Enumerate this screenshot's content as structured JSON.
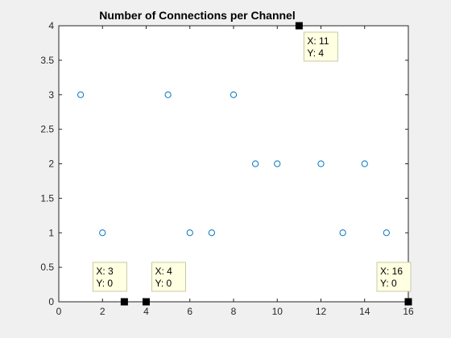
{
  "chart_data": {
    "type": "scatter",
    "title": "Number of Connections per Channel",
    "xlabel": "",
    "ylabel": "",
    "xlim": [
      0,
      16
    ],
    "ylim": [
      0,
      4
    ],
    "xticks": [
      0,
      2,
      4,
      6,
      8,
      10,
      12,
      14,
      16
    ],
    "yticks": [
      0,
      0.5,
      1,
      1.5,
      2,
      2.5,
      3,
      3.5,
      4
    ],
    "grid": false,
    "legend": "none",
    "series": [
      {
        "x": [
          1,
          2,
          5,
          6,
          7,
          8,
          9,
          10,
          12,
          13,
          14,
          15
        ],
        "y": [
          3,
          1,
          3,
          1,
          1,
          3,
          2,
          2,
          2,
          1,
          2,
          1
        ],
        "marker": "circle",
        "color": "#0072bd"
      }
    ],
    "datatips": [
      {
        "x": 3,
        "y": 0,
        "line1": "X: 3",
        "line2": "Y: 0",
        "side": "upper-left"
      },
      {
        "x": 4,
        "y": 0,
        "line1": "X: 4",
        "line2": "Y: 0",
        "side": "upper-right"
      },
      {
        "x": 11,
        "y": 4,
        "line1": "X: 11",
        "line2": "Y: 4",
        "side": "lower-right"
      },
      {
        "x": 16,
        "y": 0,
        "line1": "X: 16",
        "line2": "Y: 0",
        "side": "upper-left"
      }
    ],
    "colors": {
      "figure_bg": "#f0f0f0",
      "axes_bg": "#ffffff",
      "axis": "#262626",
      "datatip_bg": "#ffffe1",
      "datatip_border": "#c8c8a8"
    }
  }
}
